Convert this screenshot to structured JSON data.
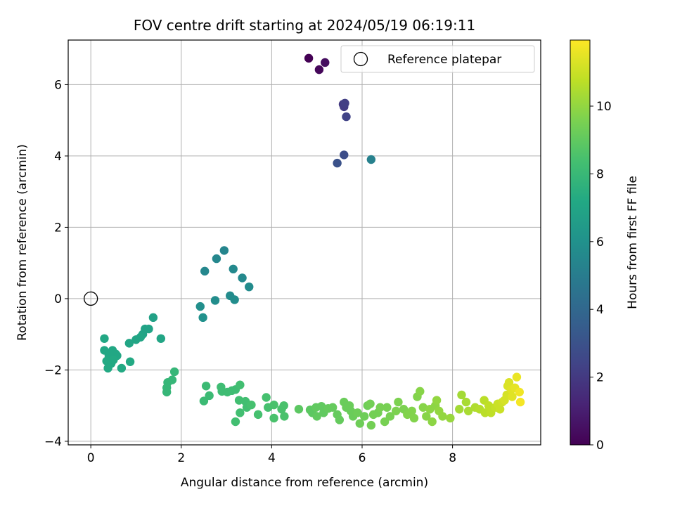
{
  "chart_data": {
    "type": "scatter",
    "title": "FOV centre drift starting at 2024/05/19 06:19:11",
    "xlabel": "Angular distance from reference (arcmin)",
    "ylabel": "Rotation from reference (arcmin)",
    "xlim": [
      -0.5,
      9.95
    ],
    "ylim": [
      -4.1,
      7.25
    ],
    "xticks": [
      0,
      2,
      4,
      6,
      8
    ],
    "yticks": [
      -4,
      -2,
      0,
      2,
      4,
      6
    ],
    "xtick_labels": [
      "0",
      "2",
      "4",
      "6",
      "8"
    ],
    "ytick_labels": [
      "−4",
      "−2",
      "0",
      "2",
      "4",
      "6"
    ],
    "grid": true,
    "legend": {
      "placement": "upper-right",
      "entries": [
        "Reference platepar"
      ]
    },
    "colorbar": {
      "label": "Hours from first FF file",
      "colormap": "viridis",
      "range": [
        0,
        11.95
      ],
      "ticks": [
        0,
        2,
        4,
        6,
        8,
        10
      ],
      "tick_labels": [
        "0",
        "2",
        "4",
        "6",
        "8",
        "10"
      ]
    },
    "reference_point": {
      "x": 0,
      "y": 0
    },
    "points": [
      [
        4.82,
        6.74,
        0.0
      ],
      [
        5.05,
        6.42,
        0.2
      ],
      [
        5.18,
        6.62,
        0.4
      ],
      [
        5.58,
        5.45,
        2.0
      ],
      [
        5.6,
        5.38,
        2.1
      ],
      [
        5.62,
        5.48,
        2.2
      ],
      [
        5.65,
        5.1,
        2.4
      ],
      [
        5.6,
        4.03,
        2.8
      ],
      [
        5.45,
        3.8,
        3.0
      ],
      [
        6.2,
        3.9,
        5.2
      ],
      [
        2.95,
        1.35,
        5.4
      ],
      [
        2.78,
        1.12,
        5.5
      ],
      [
        2.52,
        0.77,
        5.5
      ],
      [
        3.15,
        0.83,
        5.6
      ],
      [
        3.35,
        0.58,
        5.6
      ],
      [
        3.5,
        0.33,
        5.7
      ],
      [
        3.08,
        0.08,
        5.7
      ],
      [
        3.18,
        -0.03,
        5.8
      ],
      [
        2.75,
        -0.05,
        5.8
      ],
      [
        2.42,
        -0.22,
        5.9
      ],
      [
        2.48,
        -0.53,
        6.0
      ],
      [
        1.38,
        -0.53,
        6.8
      ],
      [
        1.2,
        -0.85,
        6.9
      ],
      [
        1.28,
        -0.85,
        6.9
      ],
      [
        1.15,
        -1.0,
        6.9
      ],
      [
        1.1,
        -1.08,
        7.0
      ],
      [
        1.0,
        -1.15,
        7.0
      ],
      [
        0.85,
        -1.25,
        7.0
      ],
      [
        1.55,
        -1.12,
        7.0
      ],
      [
        0.3,
        -1.12,
        7.1
      ],
      [
        0.3,
        -1.45,
        7.1
      ],
      [
        0.48,
        -1.45,
        7.1
      ],
      [
        0.55,
        -1.55,
        7.1
      ],
      [
        0.58,
        -1.6,
        7.1
      ],
      [
        0.4,
        -1.6,
        7.1
      ],
      [
        0.35,
        -1.75,
        7.2
      ],
      [
        0.45,
        -1.82,
        7.2
      ],
      [
        0.5,
        -1.72,
        7.2
      ],
      [
        0.38,
        -1.95,
        7.2
      ],
      [
        0.68,
        -1.95,
        7.2
      ],
      [
        0.87,
        -1.77,
        7.2
      ],
      [
        1.85,
        -2.05,
        7.9
      ],
      [
        1.8,
        -2.28,
        7.9
      ],
      [
        1.7,
        -2.35,
        7.9
      ],
      [
        1.68,
        -2.5,
        7.9
      ],
      [
        1.68,
        -2.62,
        7.9
      ],
      [
        2.55,
        -2.45,
        8.1
      ],
      [
        2.5,
        -2.87,
        8.1
      ],
      [
        2.62,
        -2.72,
        8.1
      ],
      [
        2.88,
        -2.48,
        8.2
      ],
      [
        2.9,
        -2.6,
        8.2
      ],
      [
        3.02,
        -2.62,
        8.2
      ],
      [
        3.12,
        -2.58,
        8.2
      ],
      [
        3.2,
        -2.55,
        8.2
      ],
      [
        3.3,
        -2.42,
        8.3
      ],
      [
        3.28,
        -2.85,
        8.3
      ],
      [
        3.42,
        -2.88,
        8.3
      ],
      [
        3.45,
        -3.05,
        8.3
      ],
      [
        3.3,
        -3.2,
        8.3
      ],
      [
        3.2,
        -3.45,
        8.3
      ],
      [
        3.55,
        -2.98,
        8.4
      ],
      [
        3.7,
        -3.25,
        8.4
      ],
      [
        3.88,
        -2.77,
        8.4
      ],
      [
        3.92,
        -3.05,
        8.4
      ],
      [
        4.05,
        -2.98,
        8.5
      ],
      [
        4.05,
        -3.35,
        8.5
      ],
      [
        4.22,
        -3.1,
        8.5
      ],
      [
        4.27,
        -3.0,
        8.5
      ],
      [
        4.28,
        -3.3,
        8.5
      ],
      [
        4.6,
        -3.1,
        8.9
      ],
      [
        4.85,
        -3.12,
        8.9
      ],
      [
        4.9,
        -3.2,
        8.9
      ],
      [
        4.98,
        -3.05,
        9.0
      ],
      [
        5.0,
        -3.3,
        9.0
      ],
      [
        5.1,
        -3.02,
        9.0
      ],
      [
        5.15,
        -3.2,
        9.0
      ],
      [
        5.25,
        -3.08,
        9.1
      ],
      [
        5.35,
        -3.05,
        9.1
      ],
      [
        5.45,
        -3.25,
        9.1
      ],
      [
        5.5,
        -3.4,
        9.1
      ],
      [
        5.6,
        -2.9,
        9.2
      ],
      [
        5.65,
        -3.05,
        9.2
      ],
      [
        5.72,
        -3.0,
        9.2
      ],
      [
        5.75,
        -3.15,
        9.2
      ],
      [
        5.8,
        -3.3,
        9.2
      ],
      [
        5.9,
        -3.2,
        9.3
      ],
      [
        5.95,
        -3.5,
        9.3
      ],
      [
        6.05,
        -3.3,
        9.3
      ],
      [
        6.12,
        -3.0,
        9.3
      ],
      [
        6.18,
        -2.95,
        9.4
      ],
      [
        6.2,
        -3.55,
        9.4
      ],
      [
        6.25,
        -3.25,
        9.4
      ],
      [
        6.35,
        -3.2,
        9.4
      ],
      [
        6.4,
        -3.05,
        9.5
      ],
      [
        6.5,
        -3.45,
        9.5
      ],
      [
        6.55,
        -3.05,
        9.5
      ],
      [
        6.62,
        -3.3,
        9.5
      ],
      [
        6.75,
        -3.15,
        9.6
      ],
      [
        6.8,
        -2.9,
        9.6
      ],
      [
        6.92,
        -3.1,
        9.6
      ],
      [
        7.0,
        -3.25,
        9.7
      ],
      [
        7.1,
        -3.15,
        9.7
      ],
      [
        7.15,
        -3.35,
        9.7
      ],
      [
        7.22,
        -2.75,
        9.7
      ],
      [
        7.28,
        -2.6,
        9.8
      ],
      [
        7.35,
        -3.05,
        9.8
      ],
      [
        7.42,
        -3.3,
        9.8
      ],
      [
        7.5,
        -3.1,
        9.9
      ],
      [
        7.55,
        -3.45,
        9.9
      ],
      [
        7.62,
        -3.0,
        9.9
      ],
      [
        7.65,
        -2.85,
        10.0
      ],
      [
        7.7,
        -3.15,
        10.0
      ],
      [
        7.78,
        -3.3,
        10.0
      ],
      [
        7.95,
        -3.35,
        10.1
      ],
      [
        8.15,
        -3.1,
        10.3
      ],
      [
        8.2,
        -2.7,
        10.3
      ],
      [
        8.3,
        -2.9,
        10.4
      ],
      [
        8.35,
        -3.15,
        10.4
      ],
      [
        8.5,
        -3.05,
        10.5
      ],
      [
        8.6,
        -3.1,
        10.6
      ],
      [
        8.7,
        -2.85,
        10.7
      ],
      [
        8.72,
        -3.2,
        10.7
      ],
      [
        8.8,
        -3.0,
        10.8
      ],
      [
        8.85,
        -3.2,
        10.8
      ],
      [
        8.95,
        -3.05,
        10.9
      ],
      [
        9.0,
        -2.95,
        11.0
      ],
      [
        9.05,
        -3.1,
        11.0
      ],
      [
        9.1,
        -2.9,
        11.1
      ],
      [
        9.15,
        -2.85,
        11.2
      ],
      [
        9.2,
        -2.7,
        11.2
      ],
      [
        9.22,
        -2.45,
        11.3
      ],
      [
        9.25,
        -2.35,
        11.3
      ],
      [
        9.3,
        -2.55,
        11.4
      ],
      [
        9.32,
        -2.75,
        11.4
      ],
      [
        9.38,
        -2.5,
        11.5
      ],
      [
        9.42,
        -2.2,
        11.6
      ],
      [
        9.48,
        -2.62,
        11.7
      ],
      [
        9.5,
        -2.9,
        11.8
      ]
    ]
  }
}
